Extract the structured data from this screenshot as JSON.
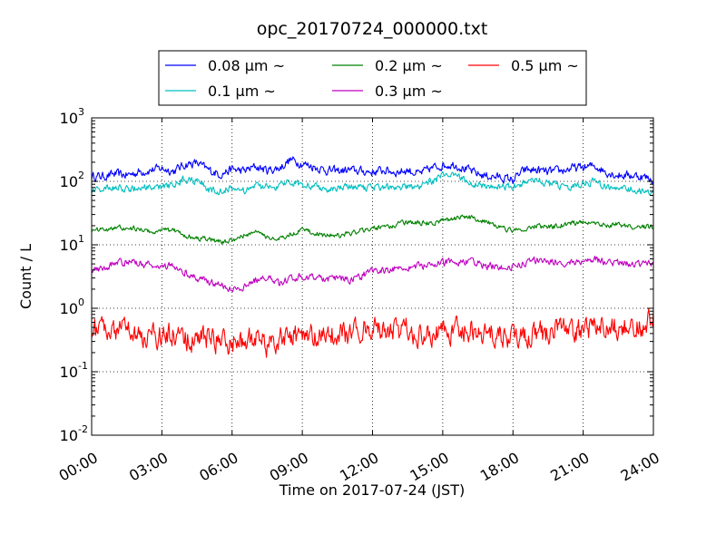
{
  "chart_data": {
    "type": "line",
    "title": "opc_20170724_000000.txt",
    "xlabel": "Time on 2017-07-24 (JST)",
    "ylabel": "Count / L",
    "y_scale": "log",
    "ylim": [
      0.01,
      1000
    ],
    "xlim": [
      "00:00",
      "24:00"
    ],
    "grid": true,
    "legend_position": "top, above plot",
    "x_ticks": [
      "00:00",
      "03:00",
      "06:00",
      "09:00",
      "12:00",
      "15:00",
      "18:00",
      "21:00",
      "24:00"
    ],
    "y_ticks": [
      {
        "base": "10",
        "exp": "-2"
      },
      {
        "base": "10",
        "exp": "-1"
      },
      {
        "base": "10",
        "exp": "0"
      },
      {
        "base": "10",
        "exp": "1"
      },
      {
        "base": "10",
        "exp": "2"
      },
      {
        "base": "10",
        "exp": "3"
      }
    ],
    "x_hours": [
      0.5,
      1,
      1.5,
      2,
      2.5,
      3,
      3.5,
      4,
      4.5,
      5,
      5.5,
      6,
      6.5,
      7,
      7.5,
      8,
      8.5,
      9,
      9.5,
      10,
      10.5,
      11,
      11.5,
      12,
      12.5,
      13,
      13.5,
      14,
      14.5,
      15,
      15.5,
      16,
      16.5,
      17,
      17.5,
      18,
      18.5,
      19,
      19.5,
      20,
      20.5,
      21,
      21.5,
      22,
      22.5,
      23,
      23.5,
      24
    ],
    "series": [
      {
        "name": "0.08 μm ~",
        "color": "#0000ff",
        "values": [
          120,
          130,
          125,
          140,
          150,
          160,
          145,
          185,
          195,
          150,
          130,
          155,
          145,
          170,
          150,
          160,
          220,
          190,
          170,
          150,
          145,
          150,
          145,
          140,
          150,
          140,
          150,
          130,
          160,
          180,
          185,
          155,
          130,
          120,
          115,
          105,
          150,
          150,
          140,
          145,
          160,
          165,
          175,
          140,
          125,
          125,
          120,
          105
        ]
      },
      {
        "name": "0.1 μm ~",
        "color": "#00bfbf",
        "values": [
          75,
          80,
          75,
          80,
          75,
          80,
          90,
          110,
          105,
          75,
          70,
          80,
          70,
          85,
          80,
          85,
          100,
          90,
          85,
          75,
          80,
          80,
          78,
          80,
          85,
          80,
          82,
          78,
          100,
          120,
          130,
          100,
          90,
          80,
          82,
          80,
          100,
          110,
          90,
          85,
          80,
          90,
          100,
          80,
          75,
          75,
          70,
          65
        ]
      },
      {
        "name": "0.2 μm ~",
        "color": "#008000",
        "values": [
          17,
          19,
          18,
          18,
          16,
          17,
          17,
          14,
          13,
          12,
          11,
          12,
          14,
          16,
          13,
          12,
          15,
          17,
          15,
          14,
          14,
          15,
          17,
          18,
          19,
          21,
          23,
          22,
          22,
          24,
          26,
          28,
          25,
          22,
          18,
          17,
          18,
          20,
          19,
          20,
          22,
          23,
          22,
          21,
          21,
          19,
          19,
          19
        ]
      },
      {
        "name": "0.3 μm ~",
        "color": "#bf00bf",
        "values": [
          4.2,
          5.2,
          5.4,
          5.2,
          4.8,
          4.6,
          4.6,
          3.8,
          3.0,
          2.6,
          2.4,
          2.0,
          2.2,
          2.8,
          3.0,
          2.4,
          3.0,
          3.2,
          3.0,
          2.8,
          3.0,
          2.8,
          3.2,
          3.8,
          4.0,
          4.2,
          4.5,
          4.6,
          4.8,
          5.2,
          5.4,
          5.6,
          5.2,
          4.6,
          4.4,
          4.6,
          5.2,
          5.8,
          5.6,
          5.4,
          5.2,
          5.5,
          5.8,
          5.4,
          5.2,
          5.0,
          4.8,
          5.0
        ]
      },
      {
        "name": "0.5 μm ~",
        "color": "#ff0000",
        "values": [
          0.45,
          0.45,
          0.4,
          0.35,
          0.4,
          0.35,
          0.4,
          0.35,
          0.3,
          0.35,
          0.3,
          0.3,
          0.3,
          0.35,
          0.25,
          0.35,
          0.4,
          0.35,
          0.4,
          0.35,
          0.4,
          0.4,
          0.45,
          0.5,
          0.45,
          0.45,
          0.45,
          0.4,
          0.4,
          0.4,
          0.45,
          0.45,
          0.45,
          0.4,
          0.35,
          0.35,
          0.4,
          0.4,
          0.4,
          0.45,
          0.45,
          0.45,
          0.5,
          0.5,
          0.5,
          0.55,
          0.55,
          0.75
        ]
      }
    ]
  }
}
